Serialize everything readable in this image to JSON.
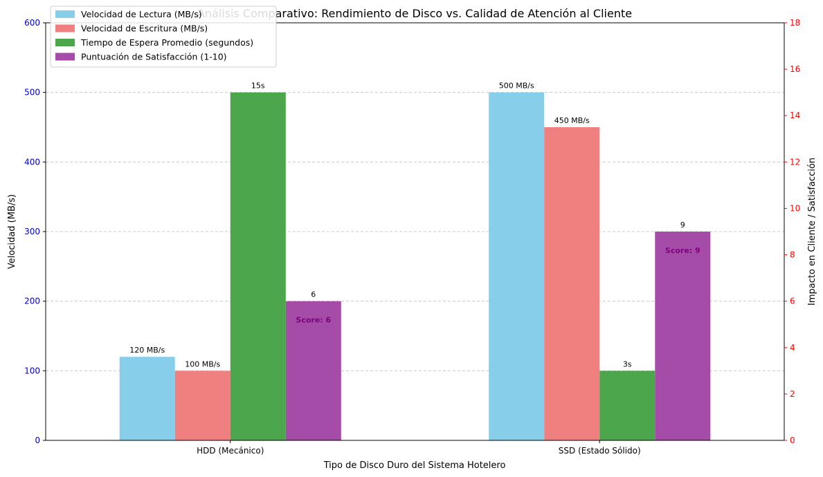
{
  "chart_data": {
    "type": "bar",
    "title": "Análisis Comparativo: Rendimiento de Disco vs. Calidad de Atención al Cliente",
    "xlabel": "Tipo de Disco Duro del Sistema Hotelero",
    "ylabel_left": "Velocidad (MB/s)",
    "ylabel_right": "Impacto en Cliente / Satisfacción",
    "ylim_left": [
      0,
      600
    ],
    "ylim_right": [
      0,
      18
    ],
    "yticks_left": [
      0,
      100,
      200,
      300,
      400,
      500,
      600
    ],
    "yticks_right": [
      0,
      2,
      4,
      6,
      8,
      10,
      12,
      14,
      16,
      18
    ],
    "grid": "horizontal dashed",
    "legend_position": "top-left",
    "categories": [
      "HDD (Mecánico)",
      "SSD (Estado Sólido)"
    ],
    "series": [
      {
        "name": "Velocidad de Lectura (MB/s)",
        "axis": "left",
        "color": "#87ceeb",
        "values": [
          120,
          500
        ],
        "labels": [
          "120 MB/s",
          "500 MB/s"
        ]
      },
      {
        "name": "Velocidad de Escritura (MB/s)",
        "axis": "left",
        "color": "#f08080",
        "values": [
          100,
          450
        ],
        "labels": [
          "100 MB/s",
          "450 MB/s"
        ]
      },
      {
        "name": "Tiempo de Espera Promedio (segundos)",
        "axis": "right",
        "color": "#4ca64c",
        "values": [
          15,
          3
        ],
        "labels": [
          "15s",
          "3s"
        ]
      },
      {
        "name": "Puntuación de Satisfacción (1-10)",
        "axis": "right",
        "color": "#a54ca8",
        "values": [
          6,
          9
        ],
        "labels": [
          "6",
          "9"
        ],
        "inner_labels": [
          "Score: 6",
          "Score: 9"
        ]
      }
    ],
    "colors": {
      "left_axis": "#0000cc",
      "right_axis": "#ff0000",
      "inner_label": "#800080",
      "grid": "#c8c8c8"
    }
  }
}
